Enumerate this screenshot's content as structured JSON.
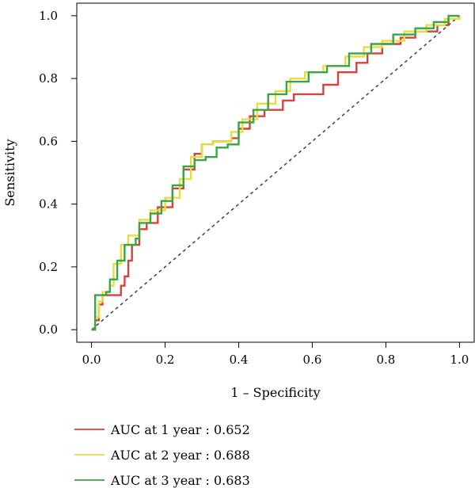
{
  "chart_data": {
    "type": "line",
    "xlabel": "1 – Specificity",
    "ylabel": "Sensitivity",
    "xlim": [
      -0.04,
      1.04
    ],
    "ylim": [
      -0.04,
      1.04
    ],
    "x_ticks": [
      "0.0",
      "0.2",
      "0.4",
      "0.6",
      "0.8",
      "1.0"
    ],
    "y_ticks": [
      "0.0",
      "0.2",
      "0.4",
      "0.6",
      "0.8",
      "1.0"
    ],
    "grid": false,
    "legend_position": "bottom",
    "reference_line": {
      "style": "dashed",
      "color": "#404040",
      "from": [
        0,
        0
      ],
      "to": [
        1,
        1
      ]
    },
    "series": [
      {
        "name": "AUC at 1 year : 0.652",
        "color": "#d9413b",
        "points": [
          [
            0,
            0
          ],
          [
            0.01,
            0.03
          ],
          [
            0.02,
            0.08
          ],
          [
            0.03,
            0.11
          ],
          [
            0.07,
            0.11
          ],
          [
            0.08,
            0.14
          ],
          [
            0.09,
            0.17
          ],
          [
            0.1,
            0.22
          ],
          [
            0.11,
            0.27
          ],
          [
            0.13,
            0.32
          ],
          [
            0.15,
            0.34
          ],
          [
            0.18,
            0.39
          ],
          [
            0.22,
            0.45
          ],
          [
            0.25,
            0.51
          ],
          [
            0.28,
            0.56
          ],
          [
            0.3,
            0.59
          ],
          [
            0.33,
            0.6
          ],
          [
            0.38,
            0.61
          ],
          [
            0.4,
            0.64
          ],
          [
            0.43,
            0.68
          ],
          [
            0.47,
            0.7
          ],
          [
            0.52,
            0.73
          ],
          [
            0.55,
            0.75
          ],
          [
            0.62,
            0.75
          ],
          [
            0.63,
            0.78
          ],
          [
            0.67,
            0.82
          ],
          [
            0.71,
            0.82
          ],
          [
            0.72,
            0.85
          ],
          [
            0.75,
            0.88
          ],
          [
            0.79,
            0.91
          ],
          [
            0.84,
            0.93
          ],
          [
            0.88,
            0.95
          ],
          [
            0.94,
            0.97
          ],
          [
            0.97,
            0.99
          ],
          [
            1,
            1
          ]
        ]
      },
      {
        "name": "AUC at 2 year : 0.688",
        "color": "#e6df3b",
        "points": [
          [
            0,
            0
          ],
          [
            0.01,
            0.04
          ],
          [
            0.02,
            0.09
          ],
          [
            0.03,
            0.12
          ],
          [
            0.05,
            0.14
          ],
          [
            0.06,
            0.21
          ],
          [
            0.08,
            0.27
          ],
          [
            0.1,
            0.3
          ],
          [
            0.13,
            0.35
          ],
          [
            0.16,
            0.38
          ],
          [
            0.2,
            0.42
          ],
          [
            0.24,
            0.48
          ],
          [
            0.27,
            0.55
          ],
          [
            0.3,
            0.59
          ],
          [
            0.33,
            0.6
          ],
          [
            0.37,
            0.6
          ],
          [
            0.38,
            0.63
          ],
          [
            0.41,
            0.67
          ],
          [
            0.45,
            0.72
          ],
          [
            0.5,
            0.76
          ],
          [
            0.54,
            0.8
          ],
          [
            0.58,
            0.82
          ],
          [
            0.63,
            0.84
          ],
          [
            0.69,
            0.87
          ],
          [
            0.74,
            0.9
          ],
          [
            0.79,
            0.92
          ],
          [
            0.85,
            0.95
          ],
          [
            0.91,
            0.97
          ],
          [
            0.96,
            0.99
          ],
          [
            1,
            1
          ]
        ]
      },
      {
        "name": "AUC at 3 year : 0.683",
        "color": "#3aa544",
        "points": [
          [
            0,
            0
          ],
          [
            0.01,
            0.05
          ],
          [
            0.01,
            0.11
          ],
          [
            0.04,
            0.12
          ],
          [
            0.05,
            0.16
          ],
          [
            0.07,
            0.22
          ],
          [
            0.09,
            0.27
          ],
          [
            0.12,
            0.29
          ],
          [
            0.13,
            0.34
          ],
          [
            0.16,
            0.37
          ],
          [
            0.19,
            0.41
          ],
          [
            0.22,
            0.46
          ],
          [
            0.25,
            0.52
          ],
          [
            0.28,
            0.54
          ],
          [
            0.31,
            0.55
          ],
          [
            0.34,
            0.58
          ],
          [
            0.37,
            0.59
          ],
          [
            0.4,
            0.66
          ],
          [
            0.44,
            0.7
          ],
          [
            0.48,
            0.75
          ],
          [
            0.53,
            0.79
          ],
          [
            0.59,
            0.82
          ],
          [
            0.64,
            0.84
          ],
          [
            0.7,
            0.88
          ],
          [
            0.76,
            0.91
          ],
          [
            0.82,
            0.94
          ],
          [
            0.88,
            0.96
          ],
          [
            0.93,
            0.98
          ],
          [
            0.97,
            1
          ],
          [
            1,
            1
          ]
        ]
      }
    ]
  }
}
